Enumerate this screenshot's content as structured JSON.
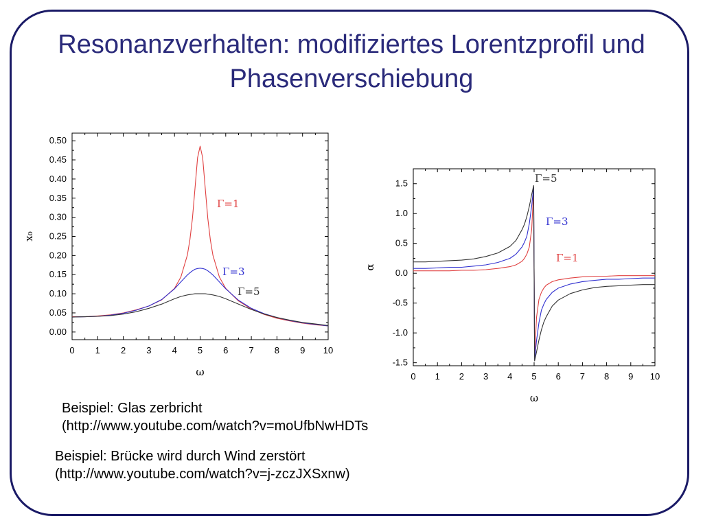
{
  "slide": {
    "title_lines": [
      "Resonanzverhalten: modifiziertes Lorentzprofil und",
      "Phasenverschiebung"
    ],
    "examples": [
      {
        "line1": "Beispiel: Glas zerbricht",
        "line2": "(http://www.youtube.com/watch?v=moUfbNwHDTs"
      },
      {
        "line1": "Beispiel: Brücke wird durch Wind zerstört",
        "line2": "(http://www.youtube.com/watch?v=j-zczJXSxnw)"
      }
    ],
    "colors": {
      "frame": "#1a1a66",
      "title": "#2a2a7a"
    }
  },
  "chart_data": [
    {
      "type": "line",
      "xlabel": "ω",
      "ylabel": "x₀",
      "xlim": [
        0,
        10
      ],
      "ylim": [
        -0.02,
        0.52
      ],
      "xticks": [
        "0",
        "1",
        "2",
        "3",
        "4",
        "5",
        "6",
        "7",
        "8",
        "9",
        "10"
      ],
      "yticks": [
        "0.00",
        "0.05",
        "0.10",
        "0.15",
        "0.20",
        "0.25",
        "0.30",
        "0.35",
        "0.40",
        "0.45",
        "0.50"
      ],
      "x": [
        0,
        0.5,
        1,
        1.5,
        2,
        2.5,
        3,
        3.5,
        4,
        4.25,
        4.5,
        4.6,
        4.7,
        4.8,
        4.9,
        5,
        5.1,
        5.2,
        5.3,
        5.4,
        5.5,
        5.75,
        6,
        6.5,
        7,
        7.5,
        8,
        8.5,
        9,
        9.5,
        10
      ],
      "series": [
        {
          "name": "Γ=1",
          "color": "#e04040",
          "values": [
            0.04,
            0.04,
            0.042,
            0.045,
            0.05,
            0.058,
            0.068,
            0.084,
            0.114,
            0.144,
            0.201,
            0.241,
            0.297,
            0.375,
            0.456,
            0.486,
            0.456,
            0.375,
            0.297,
            0.241,
            0.201,
            0.144,
            0.114,
            0.081,
            0.06,
            0.046,
            0.036,
            0.029,
            0.023,
            0.019,
            0.016
          ]
        },
        {
          "name": "Γ=3",
          "color": "#3030d0",
          "values": [
            0.039,
            0.04,
            0.041,
            0.044,
            0.049,
            0.057,
            0.068,
            0.085,
            0.113,
            0.131,
            0.149,
            0.155,
            0.16,
            0.164,
            0.166,
            0.167,
            0.166,
            0.164,
            0.16,
            0.155,
            0.149,
            0.131,
            0.113,
            0.083,
            0.062,
            0.048,
            0.038,
            0.03,
            0.024,
            0.02,
            0.016
          ]
        },
        {
          "name": "Γ=5",
          "color": "#333333",
          "values": [
            0.039,
            0.04,
            0.041,
            0.043,
            0.047,
            0.053,
            0.062,
            0.073,
            0.087,
            0.093,
            0.097,
            0.098,
            0.099,
            0.1,
            0.1,
            0.1,
            0.1,
            0.1,
            0.099,
            0.098,
            0.097,
            0.093,
            0.087,
            0.073,
            0.059,
            0.047,
            0.038,
            0.031,
            0.025,
            0.021,
            0.017
          ]
        }
      ]
    },
    {
      "type": "line",
      "xlabel": "ω",
      "ylabel": "α",
      "xlim": [
        0,
        10
      ],
      "ylim": [
        -1.55,
        1.75
      ],
      "xticks": [
        "0",
        "1",
        "2",
        "3",
        "4",
        "5",
        "6",
        "7",
        "8",
        "9",
        "10"
      ],
      "yticks": [
        "1.5",
        "1.0",
        "0.5",
        "0.0",
        "-0.5",
        "-1.0",
        "-1.5"
      ],
      "ytick_values": [
        1.5,
        1.0,
        0.5,
        0.0,
        -0.5,
        -1.0,
        -1.5
      ],
      "x": [
        0,
        0.5,
        1,
        1.5,
        2,
        2.5,
        3,
        3.5,
        4,
        4.25,
        4.5,
        4.6,
        4.7,
        4.8,
        4.9,
        4.98,
        5.02,
        5.1,
        5.2,
        5.3,
        5.4,
        5.5,
        5.75,
        6,
        6.5,
        7,
        7.5,
        8,
        8.5,
        9,
        9.5,
        10
      ],
      "series": [
        {
          "name": "Γ=1",
          "color": "#e04040",
          "values": [
            0.04,
            0.04,
            0.04,
            0.04,
            0.05,
            0.05,
            0.06,
            0.08,
            0.11,
            0.14,
            0.2,
            0.25,
            0.32,
            0.44,
            0.74,
            1.4,
            -1.4,
            -0.74,
            -0.44,
            -0.32,
            -0.25,
            -0.2,
            -0.14,
            -0.11,
            -0.08,
            -0.06,
            -0.05,
            -0.05,
            -0.04,
            -0.04,
            -0.04,
            -0.04
          ]
        },
        {
          "name": "Γ=3",
          "color": "#3030d0",
          "values": [
            0.08,
            0.08,
            0.09,
            0.1,
            0.1,
            0.12,
            0.14,
            0.18,
            0.25,
            0.32,
            0.44,
            0.52,
            0.62,
            0.83,
            1.13,
            1.45,
            -1.45,
            -1.13,
            -0.83,
            -0.62,
            -0.52,
            -0.44,
            -0.32,
            -0.25,
            -0.18,
            -0.14,
            -0.12,
            -0.1,
            -0.1,
            -0.09,
            -0.08,
            -0.08
          ]
        },
        {
          "name": "Γ=5",
          "color": "#333333",
          "values": [
            0.19,
            0.19,
            0.2,
            0.21,
            0.22,
            0.24,
            0.28,
            0.34,
            0.45,
            0.55,
            0.73,
            0.82,
            0.95,
            1.12,
            1.32,
            1.47,
            -1.47,
            -1.32,
            -1.12,
            -0.95,
            -0.82,
            -0.73,
            -0.55,
            -0.45,
            -0.34,
            -0.28,
            -0.24,
            -0.22,
            -0.21,
            -0.2,
            -0.19,
            -0.19
          ]
        }
      ]
    }
  ]
}
